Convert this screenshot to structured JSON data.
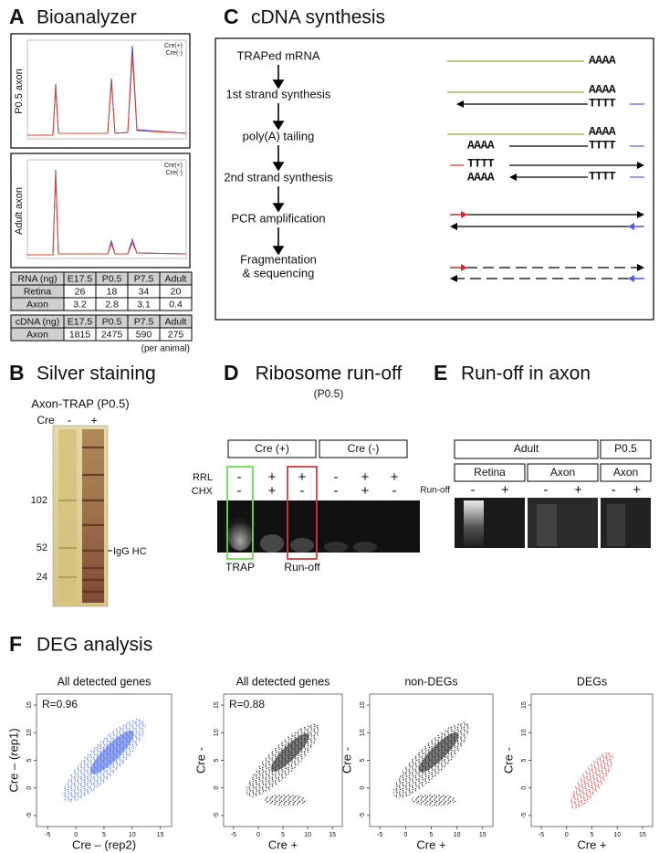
{
  "panel_a": {
    "label": "A",
    "title": "Bioanalyzer",
    "traces": [
      "P0.5 axon",
      "Adult axon"
    ],
    "legend": [
      {
        "name": "Cre(+)",
        "color": "#4a3fc8"
      },
      {
        "name": "Cre(-)",
        "color": "#e0442a"
      }
    ],
    "rna_table": {
      "header": [
        "RNA (ng)",
        "E17.5",
        "P0.5",
        "P7.5",
        "Adult"
      ],
      "rows": [
        [
          "Retina",
          26,
          18,
          34,
          20
        ],
        [
          "Axon",
          3.2,
          2.8,
          3.1,
          0.4
        ]
      ]
    },
    "cdna_table": {
      "header": [
        "cDNA (ng)",
        "E17.5",
        "P0.5",
        "P7.5",
        "Adult"
      ],
      "rows": [
        [
          "Axon",
          1815,
          2475,
          590,
          275
        ]
      ]
    },
    "note": "(per animal)"
  },
  "panel_b": {
    "label": "B",
    "title": "Silver staining",
    "subtitle": "Axon-TRAP (P0.5)",
    "lane_header": "Cre",
    "lanes": [
      "-",
      "+"
    ],
    "markers": [
      102,
      52,
      24
    ],
    "band_label": "IgG HC"
  },
  "panel_c": {
    "label": "C",
    "title": "cDNA synthesis",
    "steps": [
      [
        "TRAPed mRNA"
      ],
      [
        "1st strand synthesis"
      ],
      [
        "poly(A) tailing"
      ],
      [
        "2nd strand synthesis"
      ],
      [
        "PCR amplification"
      ],
      [
        "Fragmentation",
        "& sequencing"
      ]
    ],
    "poly_a": "AAAA",
    "poly_t": "TTTT"
  },
  "panel_d": {
    "label": "D",
    "title": "Ribosome run-off",
    "subtitle": "(P0.5)",
    "groups": [
      "Cre (+)",
      "Cre (-)"
    ],
    "rows": [
      {
        "name": "RRL",
        "signs": [
          "-",
          "+",
          "+",
          "-",
          "+",
          "+"
        ]
      },
      {
        "name": "CHX",
        "signs": [
          "-",
          "+",
          "-",
          "-",
          "+",
          "-"
        ]
      }
    ],
    "boxes": [
      {
        "name": "TRAP",
        "color": "#66e04a"
      },
      {
        "name": "Run-off",
        "color": "#d23a3a"
      }
    ]
  },
  "panel_e": {
    "label": "E",
    "title": "Run-off in axon",
    "groups": [
      "Adult",
      "P0.5"
    ],
    "tissues": [
      "Retina",
      "Axon",
      "Axon"
    ],
    "row_label": "Run-off",
    "signs": [
      "-",
      "+"
    ]
  },
  "panel_f": {
    "label": "F",
    "title": "DEG analysis",
    "plots": [
      {
        "title": "All detected genes",
        "annotation": "R=0.96",
        "x_label": "Cre – (rep2)",
        "y_label": "Cre – (rep1)",
        "color": "#3d63e6",
        "xlim": [
          -7,
          17
        ],
        "ylim": [
          -7,
          17
        ],
        "xticks": [
          -5,
          0,
          5,
          10,
          15
        ],
        "yticks": [
          -5,
          0,
          5,
          10,
          15
        ]
      },
      {
        "title": "All detected genes",
        "annotation": "R=0.88",
        "x_label": "Cre +",
        "y_label": "Cre -",
        "color": "#111111",
        "xlim": [
          -7,
          17
        ],
        "ylim": [
          -7,
          17
        ],
        "xticks": [
          -5,
          0,
          5,
          10,
          15
        ],
        "yticks": [
          -5,
          0,
          5,
          10,
          15
        ]
      },
      {
        "title": "non-DEGs",
        "x_label": "Cre +",
        "y_label": "Cre -",
        "color": "#111111",
        "xlim": [
          -7,
          17
        ],
        "ylim": [
          -7,
          17
        ],
        "xticks": [
          -5,
          0,
          5,
          10,
          15
        ],
        "yticks": [
          -5,
          0,
          5,
          10,
          15
        ]
      },
      {
        "title": "DEGs",
        "x_label": "Cre +",
        "y_label": "Cre -",
        "color": "#d22a2a",
        "xlim": [
          -7,
          17
        ],
        "ylim": [
          -7,
          17
        ],
        "xticks": [
          -5,
          0,
          5,
          10,
          15
        ],
        "yticks": [
          -5,
          0,
          5,
          10,
          15
        ]
      }
    ]
  }
}
